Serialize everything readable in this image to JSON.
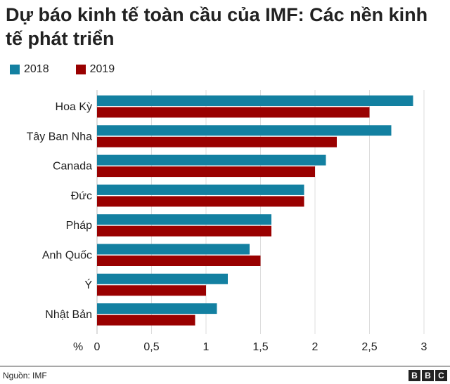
{
  "chart_data": {
    "type": "bar",
    "orientation": "horizontal",
    "title": "Dự báo kinh tế toàn cầu của IMF: Các nền kinh tế phát triển",
    "categories": [
      "Hoa Kỳ",
      "Tây Ban Nha",
      "Canada",
      "Đức",
      "Pháp",
      "Anh Quốc",
      "Ý",
      "Nhật Bản"
    ],
    "series": [
      {
        "name": "2018",
        "color": "#1380a1",
        "values": [
          2.9,
          2.7,
          2.1,
          1.9,
          1.6,
          1.4,
          1.2,
          1.1
        ]
      },
      {
        "name": "2019",
        "color": "#990000",
        "values": [
          2.5,
          2.2,
          2.0,
          1.9,
          1.6,
          1.5,
          1.0,
          0.9
        ]
      }
    ],
    "xlabel": "%",
    "xlim": [
      0,
      3
    ],
    "xticks": [
      "0",
      "0,5",
      "1",
      "1,5",
      "2",
      "2,5",
      "3"
    ],
    "grid": true,
    "legend_position": "top-left"
  },
  "footer": {
    "source": "Nguồn: IMF",
    "logo_letters": [
      "B",
      "B",
      "C"
    ]
  },
  "colors": {
    "grid": "#dddddd",
    "text": "#222222"
  }
}
